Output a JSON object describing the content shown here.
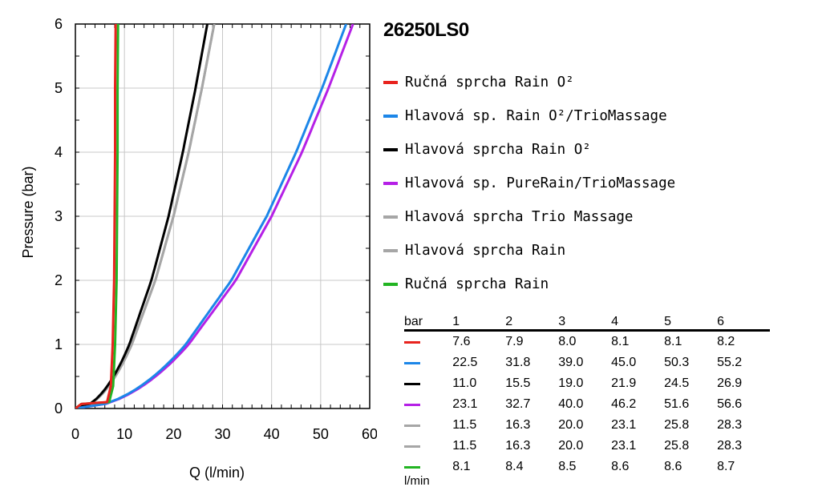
{
  "product_code": "26250LS0",
  "chart_data": {
    "type": "line",
    "xlabel": "Q (l/min)",
    "ylabel": "Pressure (bar)",
    "xlim": [
      0,
      60
    ],
    "ylim": [
      0,
      6
    ],
    "x_ticks": [
      "0",
      "10",
      "20",
      "30",
      "40",
      "50",
      "60"
    ],
    "y_ticks": [
      "0",
      "1",
      "2",
      "3",
      "4",
      "5",
      "6"
    ],
    "grid": true,
    "legend_position": "right",
    "pressures": [
      1,
      2,
      3,
      4,
      5,
      6
    ],
    "series": [
      {
        "name": "Ručná sprcha Rain O²",
        "color": "#e8231e",
        "kind": "hand",
        "flows": [
          7.6,
          7.9,
          8.0,
          8.1,
          8.1,
          8.2
        ]
      },
      {
        "name": "Hlavová sp. Rain O²/TrioMassage",
        "color": "#1c86e8",
        "kind": "head",
        "flows": [
          22.5,
          31.8,
          39.0,
          45.0,
          50.3,
          55.2
        ]
      },
      {
        "name": "Hlavová sprcha Rain O²",
        "color": "#000000",
        "kind": "head",
        "flows": [
          11.0,
          15.5,
          19.0,
          21.9,
          24.5,
          26.9
        ]
      },
      {
        "name": "Hlavová sp. PureRain/TrioMassage",
        "color": "#b520e6",
        "kind": "head",
        "flows": [
          23.1,
          32.7,
          40.0,
          46.2,
          51.6,
          56.6
        ]
      },
      {
        "name": "Hlavová sprcha Trio Massage",
        "color": "#a6a6a6",
        "kind": "head",
        "flows": [
          11.5,
          16.3,
          20.0,
          23.1,
          25.8,
          28.3
        ]
      },
      {
        "name": "Hlavová sprcha Rain",
        "color": "#a6a6a6",
        "kind": "head",
        "flows": [
          11.5,
          16.3,
          20.0,
          23.1,
          25.8,
          28.3
        ]
      },
      {
        "name": "Ručná sprcha Rain",
        "color": "#22b422",
        "kind": "hand",
        "flows": [
          8.1,
          8.4,
          8.5,
          8.6,
          8.6,
          8.7
        ]
      }
    ]
  },
  "table": {
    "unit_top": "bar",
    "unit_bottom": "l/min",
    "columns": [
      "1",
      "2",
      "3",
      "4",
      "5",
      "6"
    ],
    "rows": [
      {
        "color": "#e8231e",
        "values": [
          "7.6",
          "7.9",
          "8.0",
          "8.1",
          "8.1",
          "8.2"
        ]
      },
      {
        "color": "#1c86e8",
        "values": [
          "22.5",
          "31.8",
          "39.0",
          "45.0",
          "50.3",
          "55.2"
        ]
      },
      {
        "color": "#000000",
        "values": [
          "11.0",
          "15.5",
          "19.0",
          "21.9",
          "24.5",
          "26.9"
        ]
      },
      {
        "color": "#b520e6",
        "values": [
          "23.1",
          "32.7",
          "40.0",
          "46.2",
          "51.6",
          "56.6"
        ]
      },
      {
        "color": "#a6a6a6",
        "values": [
          "11.5",
          "16.3",
          "20.0",
          "23.1",
          "25.8",
          "28.3"
        ]
      },
      {
        "color": "#a6a6a6",
        "values": [
          "11.5",
          "16.3",
          "20.0",
          "23.1",
          "25.8",
          "28.3"
        ]
      },
      {
        "color": "#22b422",
        "values": [
          "8.1",
          "8.4",
          "8.5",
          "8.6",
          "8.6",
          "8.7"
        ]
      }
    ]
  }
}
